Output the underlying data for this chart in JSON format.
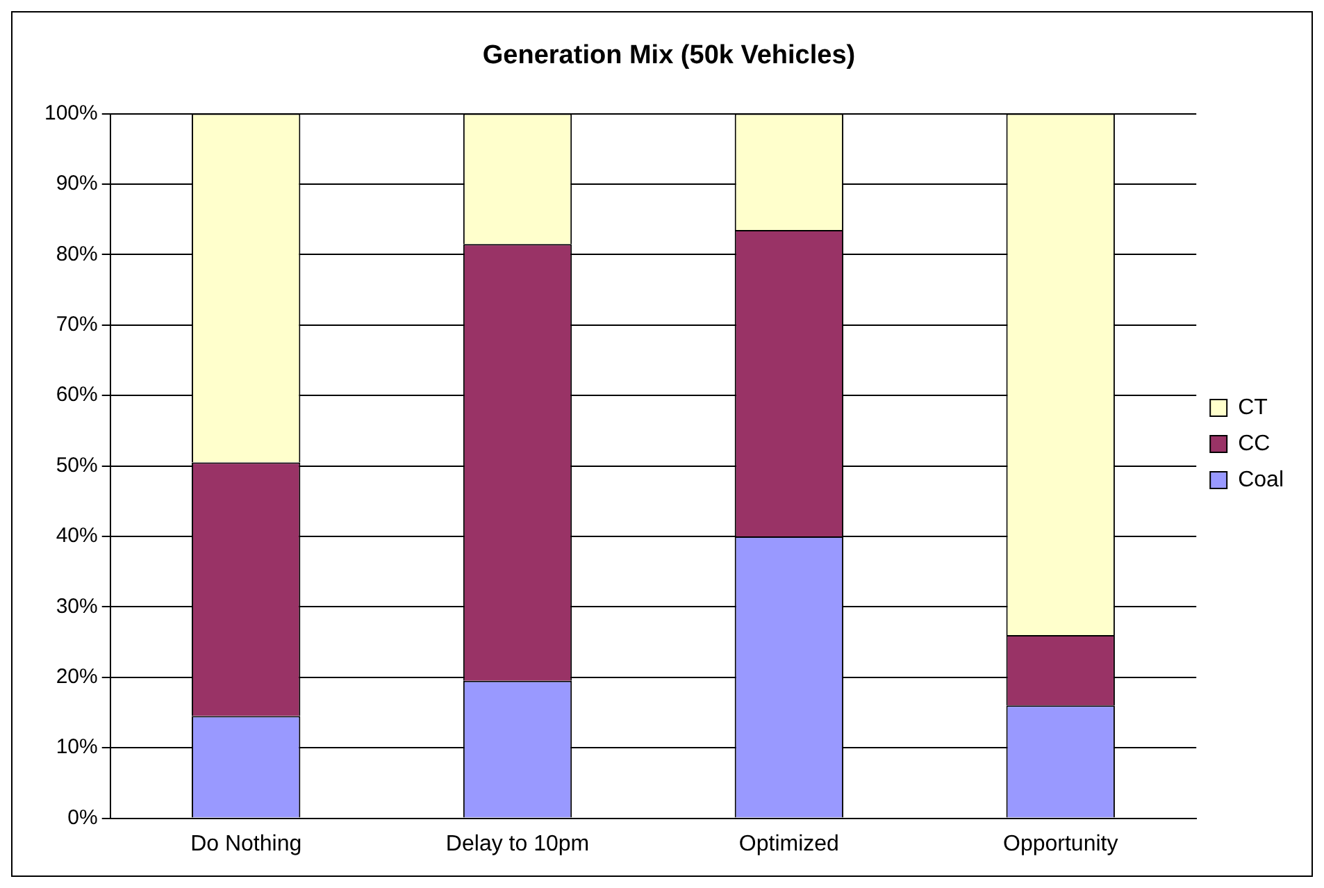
{
  "chart_data": {
    "type": "bar",
    "title": "Generation Mix (50k Vehicles)",
    "stacked": true,
    "categories": [
      "Do Nothing",
      "Delay to 10pm",
      "Optimized",
      "Opportunity"
    ],
    "series": [
      {
        "name": "Coal",
        "color": "#9999ff",
        "values": [
          14.5,
          19.5,
          40,
          16
        ]
      },
      {
        "name": "CC",
        "color": "#993366",
        "values": [
          36,
          62,
          43.5,
          10
        ]
      },
      {
        "name": "CT",
        "color": "#ffffcc",
        "values": [
          49.5,
          18.5,
          16.5,
          74
        ]
      }
    ],
    "ylim": [
      0,
      100
    ],
    "yticks": [
      {
        "value": 0,
        "label": "0%"
      },
      {
        "value": 10,
        "label": "10%"
      },
      {
        "value": 20,
        "label": "20%"
      },
      {
        "value": 30,
        "label": "30%"
      },
      {
        "value": 40,
        "label": "40%"
      },
      {
        "value": 50,
        "label": "50%"
      },
      {
        "value": 60,
        "label": "60%"
      },
      {
        "value": 70,
        "label": "70%"
      },
      {
        "value": 80,
        "label": "80%"
      },
      {
        "value": 90,
        "label": "90%"
      },
      {
        "value": 100,
        "label": "100%"
      }
    ],
    "grid": "y",
    "legend": "right"
  }
}
